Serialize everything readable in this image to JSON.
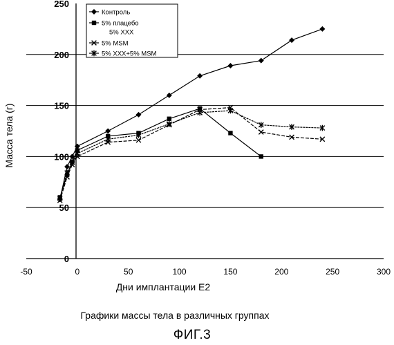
{
  "chart_data": {
    "type": "line",
    "xlabel": "Дни имплантации Е2",
    "ylabel": "Масса тела (г)",
    "xlim": [
      -50,
      300
    ],
    "ylim": [
      0,
      250
    ],
    "xticks": [
      -50,
      0,
      50,
      100,
      150,
      200,
      250,
      300
    ],
    "yticks": [
      0,
      50,
      100,
      150,
      200,
      250
    ],
    "xtick_labels": [
      "-50",
      "0",
      "50",
      "100",
      "150",
      "200",
      "250",
      "300"
    ],
    "ytick_labels": [
      "0",
      "50",
      "100",
      "150",
      "200",
      "250"
    ],
    "grid": "horizontal",
    "legend_position": "top-left",
    "legend": [
      "Контроль",
      "5% плацебо",
      "5% ХХХ",
      "5% MSM",
      "5% ХХХ+5% MSM"
    ],
    "series": [
      {
        "name": "Контроль",
        "marker": "diamond",
        "x": [
          -17,
          -10,
          -5,
          0,
          30,
          60,
          90,
          120,
          150,
          180,
          210,
          240
        ],
        "y": [
          58,
          90,
          100,
          110,
          125,
          141,
          160,
          179,
          189,
          194,
          214,
          225
        ]
      },
      {
        "name": "5% плацебо",
        "marker": "square",
        "x": [
          -17,
          -10,
          -5,
          0,
          30,
          60,
          90,
          120,
          150,
          180
        ],
        "y": [
          60,
          82,
          95,
          106,
          120,
          123,
          137,
          147,
          123,
          100
        ]
      },
      {
        "name": "5% MSM",
        "marker": "x",
        "x": [
          -17,
          -10,
          -5,
          0,
          30,
          60,
          90,
          120,
          150,
          180,
          210,
          240
        ],
        "y": [
          57,
          80,
          92,
          100,
          114,
          116,
          131,
          146,
          148,
          124,
          119,
          117
        ]
      },
      {
        "name": "5% ХХХ+5% MSM",
        "marker": "asterisk",
        "x": [
          -17,
          -10,
          -5,
          0,
          30,
          60,
          90,
          120,
          150,
          180,
          210,
          240
        ],
        "y": [
          59,
          84,
          94,
          103,
          117,
          121,
          132,
          143,
          145,
          131,
          129,
          128
        ]
      }
    ]
  },
  "caption": "Графики массы тела  в различных группах",
  "figure_label": "ФИГ.3"
}
